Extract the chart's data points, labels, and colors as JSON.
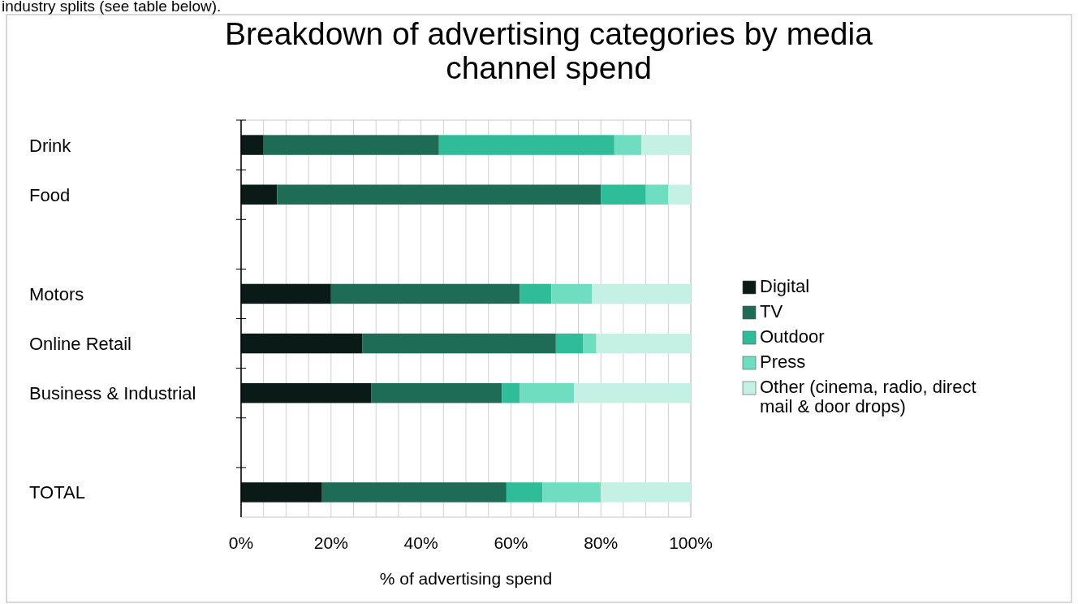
{
  "chart_data": {
    "type": "bar",
    "orientation": "horizontal",
    "stacked": true,
    "title": "Breakdown of advertising categories by media channel spend",
    "xlabel": "% of advertising spend",
    "annotations": [
      "industry splits (see table below)."
    ],
    "categories": [
      "Drink",
      "Food",
      null,
      "Motors",
      "Online Retail",
      "Business & Industrial",
      null,
      "TOTAL"
    ],
    "series": [
      {
        "name": "Digital",
        "color": "#0a1a16",
        "values": [
          5,
          8,
          null,
          20,
          27,
          29,
          null,
          18
        ]
      },
      {
        "name": "TV",
        "color": "#1e6b56",
        "values": [
          39,
          72,
          null,
          42,
          43,
          29,
          null,
          41
        ]
      },
      {
        "name": "Outdoor",
        "color": "#2fbc98",
        "values": [
          39,
          10,
          null,
          7,
          6,
          4,
          null,
          8
        ]
      },
      {
        "name": "Press",
        "color": "#6fddc0",
        "values": [
          6,
          5,
          null,
          9,
          3,
          12,
          null,
          13
        ]
      },
      {
        "name": "Other (cinema, radio, direct mail & door drops)",
        "color": "#c5f0e4",
        "values": [
          11,
          5,
          null,
          22,
          21,
          26,
          null,
          20
        ]
      }
    ],
    "xlim": [
      0,
      100
    ],
    "xticks": [
      {
        "value": 0,
        "label": "0%"
      },
      {
        "value": 5,
        "label": null
      },
      {
        "value": 10,
        "label": null
      },
      {
        "value": 15,
        "label": null
      },
      {
        "value": 20,
        "label": "20%"
      },
      {
        "value": 25,
        "label": null
      },
      {
        "value": 30,
        "label": null
      },
      {
        "value": 35,
        "label": null
      },
      {
        "value": 40,
        "label": "40%"
      },
      {
        "value": 45,
        "label": null
      },
      {
        "value": 50,
        "label": null
      },
      {
        "value": 55,
        "label": null
      },
      {
        "value": 60,
        "label": "60%"
      },
      {
        "value": 65,
        "label": null
      },
      {
        "value": 70,
        "label": null
      },
      {
        "value": 75,
        "label": null
      },
      {
        "value": 80,
        "label": "80%"
      },
      {
        "value": 85,
        "label": null
      },
      {
        "value": 90,
        "label": null
      },
      {
        "value": 95,
        "label": null
      },
      {
        "value": 100,
        "label": "100%"
      }
    ],
    "grid": "x",
    "legend": "right"
  }
}
